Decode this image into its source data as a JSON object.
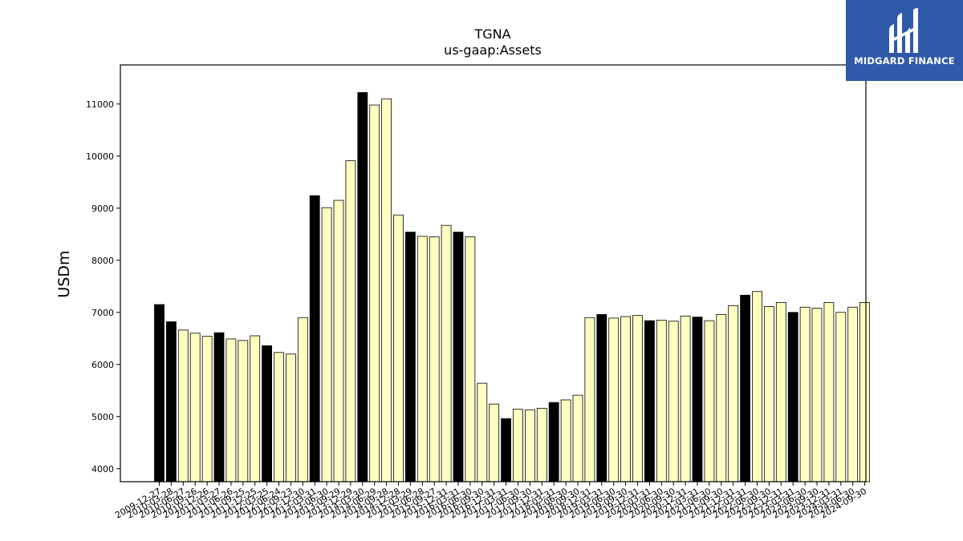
{
  "chart_data": {
    "type": "bar",
    "title": "TGNA",
    "subtitle": "us-gaap:Assets",
    "ylabel": "USDm",
    "xlabel": "",
    "ylim": [
      3750,
      11750
    ],
    "yticks": [
      4000,
      5000,
      6000,
      7000,
      8000,
      9000,
      10000,
      11000
    ],
    "grid": false,
    "colors": {
      "annual": "#000000",
      "quarterly": "#ffffc0",
      "edge": "#000000"
    },
    "categories": [
      "2009-12-27",
      "2010-03-28",
      "2010-06-27",
      "2010-09-26",
      "2010-12-26",
      "2011-03-27",
      "2011-06-26",
      "2011-09-25",
      "2011-12-25",
      "2012-03-25",
      "2012-06-24",
      "2012-09-23",
      "2012-12-30",
      "2013-03-31",
      "2013-06-30",
      "2013-09-29",
      "2013-12-29",
      "2014-03-30",
      "2014-06-29",
      "2014-09-28",
      "2014-12-28",
      "2015-03-29",
      "2015-06-28",
      "2015-09-27",
      "2015-12-31",
      "2016-03-31",
      "2016-06-30",
      "2016-09-30",
      "2016-12-31",
      "2017-03-31",
      "2017-06-30",
      "2017-09-30",
      "2017-12-31",
      "2018-03-31",
      "2018-06-30",
      "2018-09-30",
      "2018-12-31",
      "2019-03-31",
      "2019-06-30",
      "2019-09-30",
      "2019-12-31",
      "2020-03-31",
      "2020-06-30",
      "2020-09-30",
      "2020-12-31",
      "2021-03-31",
      "2021-06-30",
      "2021-09-30",
      "2021-12-31",
      "2022-03-31",
      "2022-06-30",
      "2022-09-30",
      "2022-12-31",
      "2023-03-31",
      "2023-06-30",
      "2023-09-30",
      "2023-12-31",
      "2024-03-31",
      "2024-06-30",
      "2024-09-30"
    ],
    "values": [
      7150,
      6820,
      6660,
      6600,
      6540,
      6610,
      6490,
      6460,
      6550,
      6360,
      6230,
      6200,
      6900,
      9240,
      9010,
      9150,
      9910,
      11220,
      10980,
      11100,
      8870,
      8540,
      8460,
      8450,
      8670,
      8540,
      8450,
      5640,
      5240,
      4960,
      5140,
      5130,
      5160,
      5270,
      5320,
      5410,
      6900,
      6960,
      6890,
      6920,
      6940,
      6840,
      6850,
      6830,
      6930,
      6910,
      6840,
      6960,
      7130,
      7330,
      7400,
      7110,
      7190,
      7000,
      7100,
      7080,
      7190,
      7000,
      7100,
      7190
    ],
    "annual": [
      true,
      true,
      false,
      false,
      false,
      true,
      false,
      false,
      false,
      true,
      false,
      false,
      false,
      true,
      false,
      false,
      false,
      true,
      false,
      false,
      false,
      true,
      false,
      false,
      false,
      true,
      false,
      false,
      false,
      true,
      false,
      false,
      false,
      true,
      false,
      false,
      false,
      true,
      false,
      false,
      false,
      true,
      false,
      false,
      false,
      true,
      false,
      false,
      false,
      true,
      false,
      false,
      false,
      true,
      false,
      false,
      false,
      false,
      false,
      false
    ],
    "xtick_labels": [
      "2009-12-27",
      "2010-03-28",
      "2010-06-27",
      "2010-09-26",
      "2010-12-26",
      "2011-03-27",
      "2011-06-26",
      "2011-09-25",
      "2011-12-25",
      "2012-03-25",
      "2012-06-24",
      "2012-09-23",
      "2012-12-30",
      "2013-03-31",
      "2013-06-30",
      "2013-09-29",
      "2013-12-29",
      "2014-03-30",
      "2014-06-29",
      "2014-09-28",
      "2014-12-28",
      "2015-03-29",
      "2015-06-28",
      "2015-09-27",
      "2015-12-31",
      "2016-03-31",
      "2016-06-30",
      "2016-09-30",
      "2016-12-31",
      "2017-03-31",
      "2017-06-30",
      "2017-09-30",
      "2017-12-31",
      "2018-03-31",
      "2018-06-30",
      "2018-09-30",
      "2018-12-31",
      "2019-03-31",
      "2019-06-30",
      "2019-09-30",
      "2019-12-31",
      "2020-03-31",
      "2020-06-30",
      "2020-09-30",
      "2020-12-31",
      "2021-03-31",
      "2021-06-30",
      "2021-09-30",
      "2021-12-31",
      "2022-03-31",
      "2022-06-30",
      "2022-09-30",
      "2022-12-31",
      "2023-03-31",
      "2023-06-30",
      "2023-09-30",
      "2023-12-31",
      "2024-03-31",
      "2024-06-30",
      "2024-09-30"
    ]
  },
  "brand": {
    "name": "MIDGARD FINANCE",
    "background": "#2f5aa9",
    "icon": "midgard-logo-icon"
  }
}
